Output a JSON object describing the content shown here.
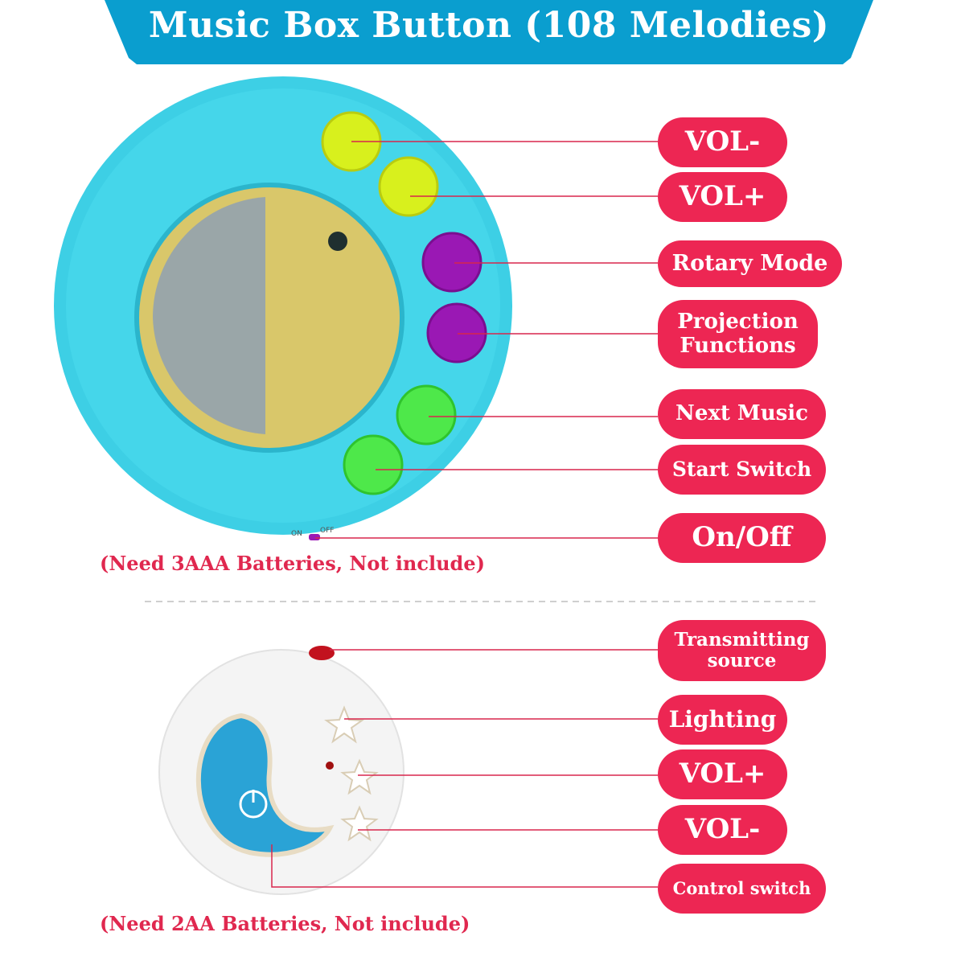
{
  "title": "Music Box Button (108 Melodies)",
  "colors": {
    "banner": "#0a9ecf",
    "label": "#ed2653",
    "device_teal": "#3dcfe5",
    "remote_blue": "#2aa3d6"
  },
  "music_box": {
    "labels": [
      "VOL-",
      "VOL+",
      "Rotary Mode",
      "Projection Functions",
      "Next Music",
      "Start Switch",
      "On/Off"
    ],
    "switch_text": {
      "on": "ON",
      "off": "OFF"
    },
    "battery_note": "(Need 3AAA Batteries,   Not include)"
  },
  "remote": {
    "labels": [
      "Transmitting source",
      "Lighting",
      "VOL+",
      "VOL-",
      "Control switch"
    ],
    "battery_note": "(Need 2AA Batteries,   Not include)"
  }
}
